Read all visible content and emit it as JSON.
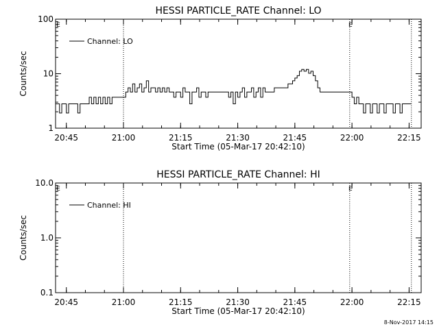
{
  "footer": {
    "timestamp": "8-Nov-2017 14:15"
  },
  "chart_data": [
    {
      "type": "line",
      "title": "HESSI PARTICLE_RATE Channel: LO",
      "xlabel": "Start Time (05-Mar-17 20:42:10)",
      "ylabel": "Counts/sec",
      "yscale": "log",
      "xlim": [
        20.7028,
        22.3028
      ],
      "ylim": [
        1,
        100
      ],
      "xticks": [
        {
          "v": 20.75,
          "label": "20:45"
        },
        {
          "v": 21.0,
          "label": "21:00"
        },
        {
          "v": 21.25,
          "label": "21:15"
        },
        {
          "v": 21.5,
          "label": "21:30"
        },
        {
          "v": 21.75,
          "label": "21:45"
        },
        {
          "v": 22.0,
          "label": "22:00"
        },
        {
          "v": 22.25,
          "label": "22:15"
        }
      ],
      "yticks": [
        {
          "v": 1,
          "label": "1"
        },
        {
          "v": 10,
          "label": "10"
        },
        {
          "v": 100,
          "label": "100"
        }
      ],
      "legend": {
        "position": "top-left",
        "entries": [
          "Channel: LO"
        ]
      },
      "vlines": [
        {
          "x": 21.0,
          "marker": ""
        },
        {
          "x": 21.99,
          "marker": "E"
        },
        {
          "x": 22.26,
          "marker": ""
        }
      ],
      "corner_marker": "E",
      "series": [
        {
          "name": "Channel: LO",
          "x": [
            20.7,
            20.72,
            20.73,
            20.74,
            20.75,
            20.76,
            20.77,
            20.78,
            20.79,
            20.8,
            20.81,
            20.82,
            20.83,
            20.84,
            20.85,
            20.86,
            20.87,
            20.88,
            20.89,
            20.9,
            20.91,
            20.92,
            20.93,
            20.94,
            20.95,
            20.96,
            20.97,
            20.98,
            20.99,
            21.0,
            21.01,
            21.02,
            21.03,
            21.04,
            21.05,
            21.06,
            21.07,
            21.08,
            21.09,
            21.1,
            21.11,
            21.12,
            21.13,
            21.14,
            21.15,
            21.16,
            21.17,
            21.18,
            21.19,
            21.2,
            21.21,
            21.22,
            21.23,
            21.24,
            21.25,
            21.26,
            21.27,
            21.28,
            21.29,
            21.3,
            21.31,
            21.32,
            21.33,
            21.34,
            21.35,
            21.36,
            21.37,
            21.38,
            21.39,
            21.4,
            21.41,
            21.42,
            21.43,
            21.44,
            21.45,
            21.46,
            21.47,
            21.48,
            21.49,
            21.5,
            21.51,
            21.52,
            21.53,
            21.54,
            21.55,
            21.56,
            21.57,
            21.58,
            21.59,
            21.6,
            21.61,
            21.62,
            21.63,
            21.64,
            21.65,
            21.66,
            21.67,
            21.68,
            21.69,
            21.7,
            21.71,
            21.72,
            21.73,
            21.74,
            21.75,
            21.76,
            21.77,
            21.78,
            21.79,
            21.8,
            21.81,
            21.82,
            21.83,
            21.84,
            21.85,
            21.86,
            21.87,
            21.88,
            21.89,
            21.9,
            21.91,
            21.92,
            21.93,
            21.94,
            21.95,
            21.96,
            21.97,
            21.98,
            21.99,
            22.0,
            22.01,
            22.02,
            22.03,
            22.04,
            22.05,
            22.06,
            22.07,
            22.08,
            22.09,
            22.1,
            22.11,
            22.12,
            22.13,
            22.14,
            22.15,
            22.16,
            22.17,
            22.18,
            22.19,
            22.2,
            22.21,
            22.22,
            22.23,
            22.24,
            22.25,
            22.26
          ],
          "values": [
            2.8,
            1.9,
            2.8,
            2.8,
            1.9,
            2.8,
            2.8,
            2.8,
            2.8,
            1.9,
            2.8,
            2.8,
            2.8,
            2.8,
            3.7,
            2.8,
            3.7,
            2.8,
            3.7,
            2.8,
            3.7,
            2.8,
            3.7,
            2.8,
            3.7,
            3.7,
            3.7,
            3.7,
            3.7,
            3.7,
            4.6,
            5.5,
            4.6,
            6.5,
            4.6,
            5.5,
            6.5,
            4.6,
            5.5,
            7.4,
            4.6,
            5.5,
            5.5,
            4.6,
            5.5,
            4.6,
            5.5,
            4.6,
            5.5,
            4.6,
            4.6,
            3.7,
            4.6,
            4.6,
            3.7,
            5.5,
            4.6,
            4.6,
            2.8,
            4.6,
            4.6,
            5.5,
            3.7,
            4.6,
            4.6,
            3.7,
            4.6,
            4.6,
            4.6,
            4.6,
            4.6,
            4.6,
            4.6,
            4.6,
            4.6,
            3.7,
            4.6,
            2.8,
            4.6,
            3.7,
            4.6,
            5.5,
            3.7,
            4.6,
            4.6,
            5.5,
            3.7,
            4.6,
            5.5,
            3.7,
            5.5,
            4.6,
            4.6,
            4.6,
            4.6,
            5.5,
            5.5,
            5.5,
            5.5,
            5.5,
            5.5,
            6.5,
            6.5,
            7.4,
            8.3,
            9.2,
            11.1,
            12.0,
            11.1,
            12.0,
            10.2,
            11.1,
            9.2,
            7.4,
            5.5,
            4.6,
            4.6,
            4.6,
            4.6,
            4.6,
            4.6,
            4.6,
            4.6,
            4.6,
            4.6,
            4.6,
            4.6,
            4.6,
            4.6,
            3.7,
            2.8,
            3.7,
            2.8,
            2.8,
            1.9,
            2.8,
            2.8,
            1.9,
            2.8,
            2.8,
            1.9,
            2.8,
            2.8,
            1.9,
            2.8,
            2.8,
            2.8,
            1.9,
            2.8,
            2.8,
            1.9,
            2.8,
            2.8,
            2.8,
            2.8,
            2.8
          ]
        }
      ]
    },
    {
      "type": "line",
      "title": "HESSI PARTICLE_RATE Channel: HI",
      "xlabel": "Start Time (05-Mar-17 20:42:10)",
      "ylabel": "Counts/sec",
      "yscale": "log",
      "xlim": [
        20.7028,
        22.3028
      ],
      "ylim": [
        0.1,
        10
      ],
      "xticks": [
        {
          "v": 20.75,
          "label": "20:45"
        },
        {
          "v": 21.0,
          "label": "21:00"
        },
        {
          "v": 21.25,
          "label": "21:15"
        },
        {
          "v": 21.5,
          "label": "21:30"
        },
        {
          "v": 21.75,
          "label": "21:45"
        },
        {
          "v": 22.0,
          "label": "22:00"
        },
        {
          "v": 22.25,
          "label": "22:15"
        }
      ],
      "yticks": [
        {
          "v": 0.1,
          "label": "0.1"
        },
        {
          "v": 1,
          "label": "1.0"
        },
        {
          "v": 10,
          "label": "10.0"
        }
      ],
      "legend": {
        "position": "top-left",
        "entries": [
          "Channel: HI"
        ]
      },
      "vlines": [
        {
          "x": 21.0,
          "marker": ""
        },
        {
          "x": 21.99,
          "marker": "E"
        },
        {
          "x": 22.26,
          "marker": ""
        }
      ],
      "corner_marker": "E",
      "series": [
        {
          "name": "Channel: HI",
          "x": [],
          "values": []
        }
      ]
    }
  ]
}
